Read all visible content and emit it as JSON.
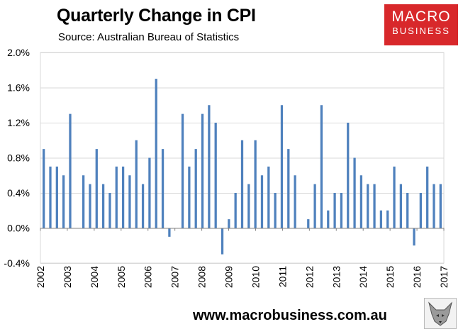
{
  "header": {
    "title": "Quarterly Change in CPI",
    "subtitle": "Source: Australian Bureau of Statistics"
  },
  "logo": {
    "line1": "MACRO",
    "line2": "BUSINESS",
    "color": "#d8282b"
  },
  "footer": {
    "url": "www.macrobusiness.com.au"
  },
  "colors": {
    "bar": "#4f81bd",
    "grid": "#d9d9d9",
    "axis": "#808080"
  },
  "chart_data": {
    "type": "bar",
    "title": "Quarterly Change in CPI",
    "xlabel": "",
    "ylabel": "",
    "ylim": [
      -0.4,
      2.0
    ],
    "yticks": [
      -0.4,
      0.0,
      0.4,
      0.8,
      1.2,
      1.6,
      2.0
    ],
    "ytick_labels": [
      "-0.4%",
      "0.0%",
      "0.4%",
      "0.8%",
      "1.2%",
      "1.6%",
      "2.0%"
    ],
    "grid": true,
    "years": [
      "2002",
      "2003",
      "2004",
      "2005",
      "2006",
      "2007",
      "2008",
      "2009",
      "2010",
      "2011",
      "2012",
      "2013",
      "2014",
      "2015",
      "2016",
      "2017"
    ],
    "series": [
      {
        "values": [
          0.9,
          0.7,
          0.7,
          0.6,
          1.3,
          0.0,
          0.6,
          0.5,
          0.9,
          0.5,
          0.4,
          0.7,
          0.7,
          0.6,
          1.0,
          0.5,
          0.8,
          1.7,
          0.9,
          -0.1,
          0.0,
          1.3,
          0.7,
          0.9,
          1.3,
          1.4,
          1.2,
          -0.3,
          0.1,
          0.4,
          1.0,
          0.5,
          1.0,
          0.6,
          0.7,
          0.4,
          1.4,
          0.9,
          0.6,
          0.0,
          0.1,
          0.5,
          1.4,
          0.2,
          0.4,
          0.4,
          1.2,
          0.8,
          0.6,
          0.5,
          0.5,
          0.2,
          0.2,
          0.7,
          0.5,
          0.4,
          -0.2,
          0.4,
          0.7,
          0.5,
          0.5
        ]
      }
    ]
  }
}
